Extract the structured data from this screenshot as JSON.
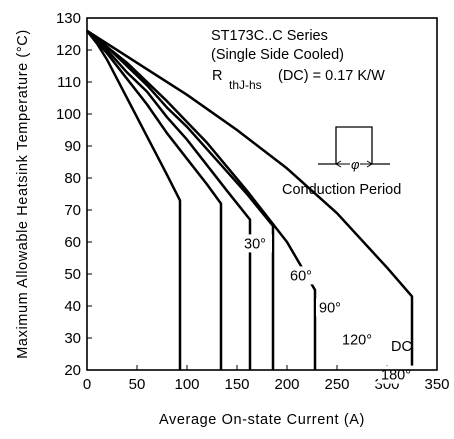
{
  "chart_data": {
    "type": "line",
    "title": "",
    "xlabel": "Average On-state Current (A)",
    "ylabel": "Maximum Allowable Heatsink Temperature (°C)",
    "xlim": [
      0,
      350
    ],
    "ylim": [
      20,
      130
    ],
    "xticks": [
      "0",
      "50",
      "100",
      "150",
      "200",
      "250",
      "300",
      "350"
    ],
    "yticks": [
      "20",
      "30",
      "40",
      "50",
      "60",
      "70",
      "80",
      "90",
      "100",
      "110",
      "120",
      "130"
    ],
    "grid": false,
    "annotation": {
      "series_line": "ST173C..C Series",
      "cooling_line": "(Single Side Cooled)",
      "rth_prefix": "R",
      "rth_subscript": "thJ-hs",
      "rth_value": "(DC) = 0.17 K/W",
      "inset_phi": "φ",
      "inset_label": "Conduction Period"
    },
    "series": [
      {
        "name": "30°",
        "label_at": [
          157,
          58
        ],
        "x": [
          0,
          10,
          20,
          30,
          40,
          50,
          60,
          70,
          80,
          93,
          93
        ],
        "y": [
          126,
          122,
          117,
          111,
          105,
          99,
          93,
          87,
          81,
          73,
          20
        ]
      },
      {
        "name": "60°",
        "label_at": [
          203,
          48
        ],
        "x": [
          0,
          20,
          40,
          60,
          80,
          100,
          120,
          134,
          134
        ],
        "y": [
          126,
          119,
          111,
          103,
          94,
          86,
          78,
          72,
          20
        ]
      },
      {
        "name": "90°",
        "label_at": [
          232,
          38
        ],
        "x": [
          0,
          20,
          40,
          60,
          80,
          100,
          120,
          140,
          163,
          163
        ],
        "y": [
          126,
          120,
          113,
          107,
          99,
          92,
          84,
          76,
          67,
          20
        ]
      },
      {
        "name": "120°",
        "label_at": [
          255,
          28
        ],
        "x": [
          0,
          20,
          40,
          60,
          80,
          100,
          120,
          140,
          160,
          186,
          186
        ],
        "y": [
          126,
          121,
          115,
          109,
          102,
          96,
          89,
          82,
          75,
          65,
          20
        ]
      },
      {
        "name": "180°",
        "label_at": [
          294,
          17
        ],
        "x": [
          0,
          40,
          80,
          120,
          160,
          200,
          228,
          228
        ],
        "y": [
          126,
          116,
          104,
          91,
          76,
          60,
          45,
          20
        ]
      },
      {
        "name": "DC",
        "label_at": [
          304,
          26
        ],
        "x": [
          0,
          50,
          100,
          150,
          200,
          250,
          300,
          325,
          325
        ],
        "y": [
          126,
          116,
          106,
          95,
          83,
          69,
          52,
          43,
          20
        ]
      }
    ]
  }
}
